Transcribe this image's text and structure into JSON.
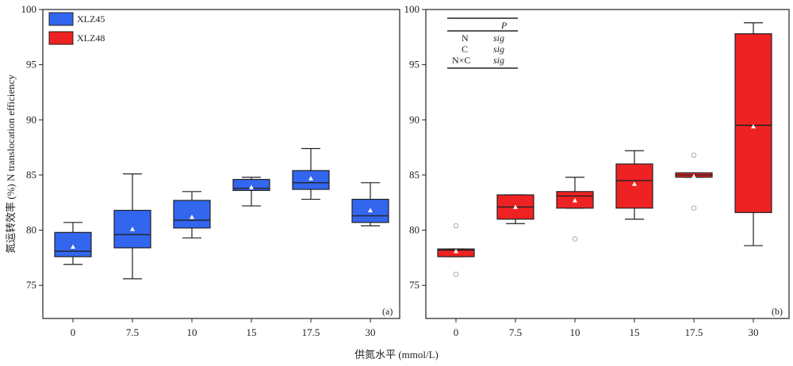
{
  "chart_data": [
    {
      "panel": "(a)",
      "type": "box",
      "categories": [
        "0",
        "7.5",
        "10",
        "15",
        "17.5",
        "30"
      ],
      "ylim": [
        72,
        100
      ],
      "yticks": [
        75,
        80,
        85,
        90,
        95,
        100
      ],
      "color": "#3366ee",
      "legend": [
        {
          "name": "XLZ45",
          "color": "#3366ee"
        },
        {
          "name": "XLZ48",
          "color": "#ee2222"
        }
      ],
      "boxes": [
        {
          "min": 76.9,
          "q1": 77.6,
          "median": 78.1,
          "q3": 79.8,
          "max": 80.7,
          "mean": 78.5,
          "outliers": []
        },
        {
          "min": 75.6,
          "q1": 78.4,
          "median": 79.6,
          "q3": 81.8,
          "max": 85.1,
          "mean": 80.1,
          "outliers": []
        },
        {
          "min": 79.3,
          "q1": 80.2,
          "median": 80.9,
          "q3": 82.7,
          "max": 83.5,
          "mean": 81.2,
          "outliers": []
        },
        {
          "min": 82.2,
          "q1": 83.6,
          "median": 83.8,
          "q3": 84.6,
          "max": 84.8,
          "mean": 83.9,
          "outliers": []
        },
        {
          "min": 82.8,
          "q1": 83.7,
          "median": 84.3,
          "q3": 85.4,
          "max": 87.4,
          "mean": 84.7,
          "outliers": []
        },
        {
          "min": 80.4,
          "q1": 80.7,
          "median": 81.3,
          "q3": 82.8,
          "max": 84.3,
          "mean": 81.8,
          "outliers": []
        }
      ]
    },
    {
      "panel": "(b)",
      "type": "box",
      "categories": [
        "0",
        "7.5",
        "10",
        "15",
        "17.5",
        "30"
      ],
      "ylim": [
        72,
        100
      ],
      "yticks": [
        75,
        80,
        85,
        90,
        95,
        100
      ],
      "color": "#ee2222",
      "stats_table": {
        "header": "P",
        "rows": [
          {
            "factor": "N",
            "value": "sig"
          },
          {
            "factor": "C",
            "value": "sig"
          },
          {
            "factor": "N×C",
            "value": "sig"
          }
        ]
      },
      "boxes": [
        {
          "min": 77.6,
          "q1": 77.6,
          "median": 78.2,
          "q3": 78.3,
          "max": 78.3,
          "mean": 78.1,
          "outliers": [
            80.4,
            76.0
          ]
        },
        {
          "min": 80.6,
          "q1": 81.0,
          "median": 82.1,
          "q3": 83.2,
          "max": 83.2,
          "mean": 82.1,
          "outliers": []
        },
        {
          "min": 82.0,
          "q1": 82.0,
          "median": 83.1,
          "q3": 83.5,
          "max": 84.8,
          "mean": 82.7,
          "outliers": [
            79.2
          ]
        },
        {
          "min": 81.0,
          "q1": 82.0,
          "median": 84.5,
          "q3": 86.0,
          "max": 87.2,
          "mean": 84.2,
          "outliers": []
        },
        {
          "min": 84.8,
          "q1": 84.8,
          "median": 85.0,
          "q3": 85.2,
          "max": 85.2,
          "mean": 84.9,
          "outliers": [
            86.8,
            82.0
          ]
        },
        {
          "min": 78.6,
          "q1": 81.6,
          "median": 89.5,
          "q3": 97.8,
          "max": 98.8,
          "mean": 89.4,
          "outliers": []
        }
      ]
    }
  ],
  "labels": {
    "ylabel": "氮运转效率 (%)  N translocation efficiency",
    "xlabel": "供氮水平 (mmol/L)"
  }
}
